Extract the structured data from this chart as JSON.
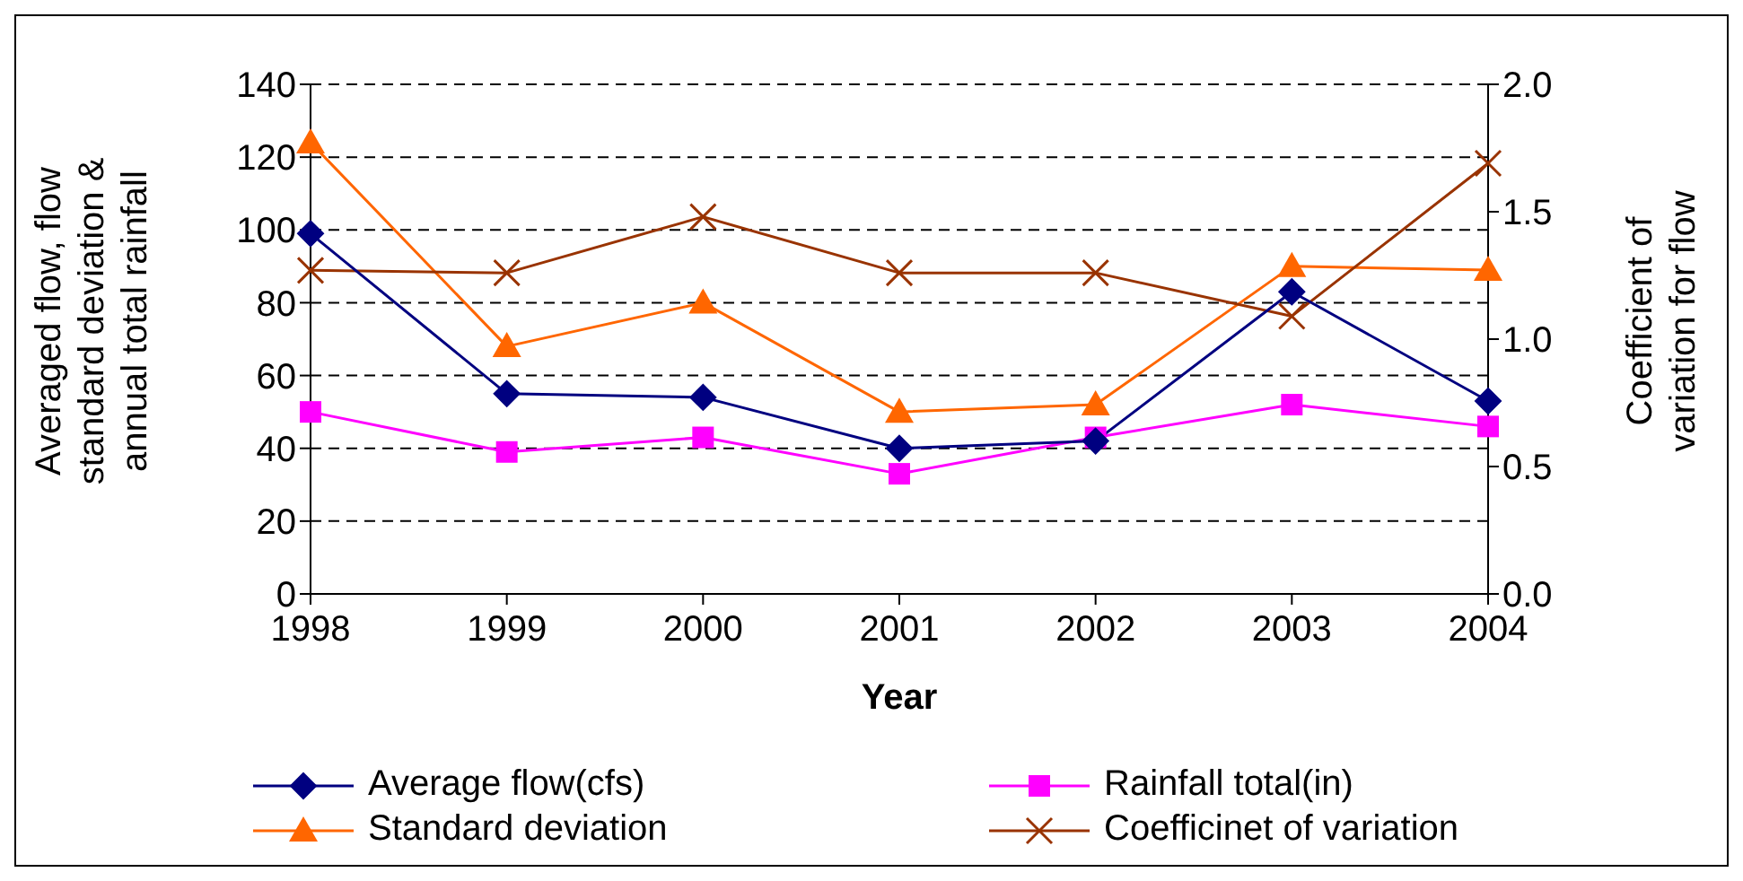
{
  "chart_data": {
    "type": "line",
    "xlabel": "Year",
    "ylabel": "Averaged flow, flow standard deviation & annual total rainfall",
    "y2label": "Coefficient of variation for flow",
    "categories": [
      "1998",
      "1999",
      "2000",
      "2001",
      "2002",
      "2003",
      "2004"
    ],
    "series": [
      {
        "name": "Average flow(cfs)",
        "color": "#000080",
        "marker": "diamond",
        "values": [
          99,
          55,
          54,
          40,
          42,
          83,
          53
        ]
      },
      {
        "name": "Rainfall total(in)",
        "color": "#ff00ff",
        "marker": "square",
        "values": [
          50,
          39,
          43,
          33,
          43,
          52,
          46
        ]
      },
      {
        "name": "Standard deviation",
        "color": "#ff6600",
        "marker": "triangle",
        "values": [
          124,
          68,
          80,
          50,
          52,
          90,
          89
        ]
      },
      {
        "name": "Coefficinet of variation",
        "color": "#993300",
        "marker": "cross",
        "axis": "y2",
        "values": [
          1.27,
          1.26,
          1.48,
          1.26,
          1.26,
          1.09,
          1.69
        ]
      }
    ],
    "ylim": [
      0,
      140
    ],
    "yticks": [
      0,
      20,
      40,
      60,
      80,
      100,
      120,
      140
    ],
    "y2lim": [
      0,
      2
    ],
    "y2ticks": [
      {
        "value": 0,
        "label": "0.0"
      },
      {
        "value": 0.5,
        "label": "0.5"
      },
      {
        "value": 1,
        "label": "1.0"
      },
      {
        "value": 1.5,
        "label": "1.5"
      },
      {
        "value": 2,
        "label": "2.0"
      }
    ],
    "grid": "y",
    "legend": "bottom",
    "line_style": "solid"
  }
}
